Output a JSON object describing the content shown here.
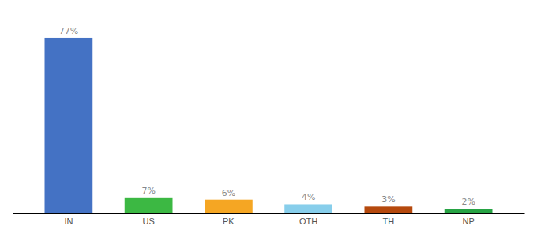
{
  "chart_data": {
    "type": "bar",
    "categories": [
      "IN",
      "US",
      "PK",
      "OTH",
      "TH",
      "NP"
    ],
    "values": [
      77,
      7,
      6,
      4,
      3,
      2
    ],
    "value_labels": [
      "77%",
      "7%",
      "6%",
      "4%",
      "3%",
      "2%"
    ],
    "colors": [
      "#4472c4",
      "#3cb843",
      "#f5a623",
      "#87ceeb",
      "#b5490d",
      "#27a344"
    ],
    "ylim": [
      0,
      86
    ],
    "data_labels": true,
    "tick_labels": "x",
    "grid": false
  }
}
